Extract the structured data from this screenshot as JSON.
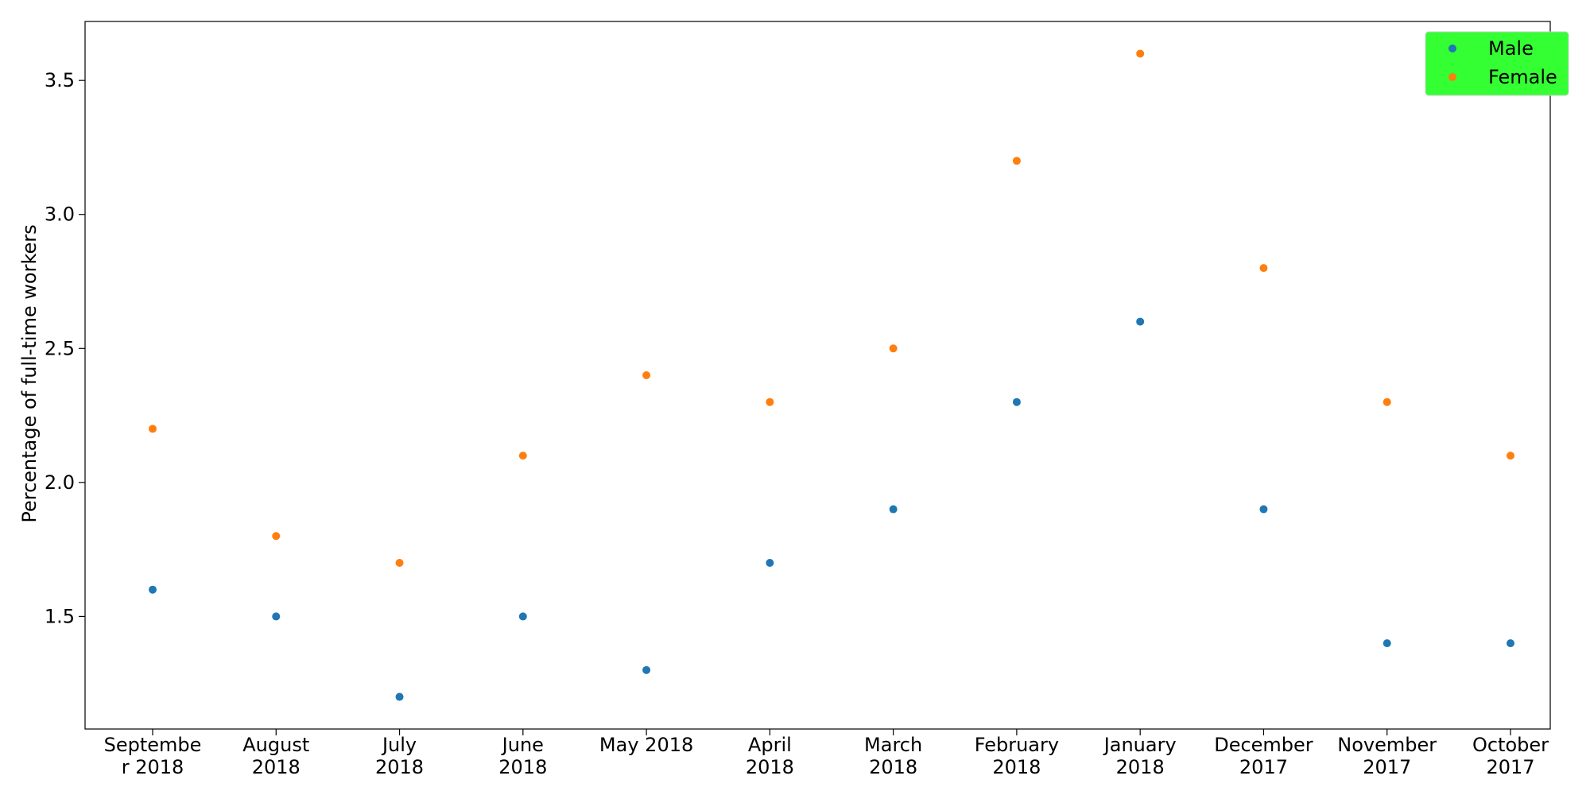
{
  "chart_data": {
    "type": "scatter",
    "title": "",
    "xlabel": "",
    "ylabel": "Percentage of full-time workers",
    "categories": [
      [
        "Septembe",
        "r 2018"
      ],
      [
        "August",
        "2018"
      ],
      [
        "July",
        "2018"
      ],
      [
        "June",
        "2018"
      ],
      [
        "May 2018"
      ],
      [
        "April",
        "2018"
      ],
      [
        "March",
        "2018"
      ],
      [
        "February",
        "2018"
      ],
      [
        "January",
        "2018"
      ],
      [
        "December",
        "2017"
      ],
      [
        "November",
        "2017"
      ],
      [
        "October",
        "2017"
      ]
    ],
    "series": [
      {
        "name": "Male",
        "color": "#1f77b4",
        "values": [
          1.6,
          1.5,
          1.2,
          1.5,
          1.3,
          1.7,
          1.9,
          2.3,
          2.6,
          1.9,
          1.4,
          1.4
        ]
      },
      {
        "name": "Female",
        "color": "#ff7f0e",
        "values": [
          2.2,
          1.8,
          1.7,
          2.1,
          2.4,
          2.3,
          2.5,
          3.2,
          3.6,
          2.8,
          2.3,
          2.1
        ]
      }
    ],
    "ylim": [
      1.08,
      3.72
    ],
    "yticks": [
      "1.5",
      "2.0",
      "2.5",
      "3.0",
      "3.5"
    ],
    "grid": false,
    "legend": {
      "position": "upper right",
      "background": "#33ff33"
    }
  }
}
